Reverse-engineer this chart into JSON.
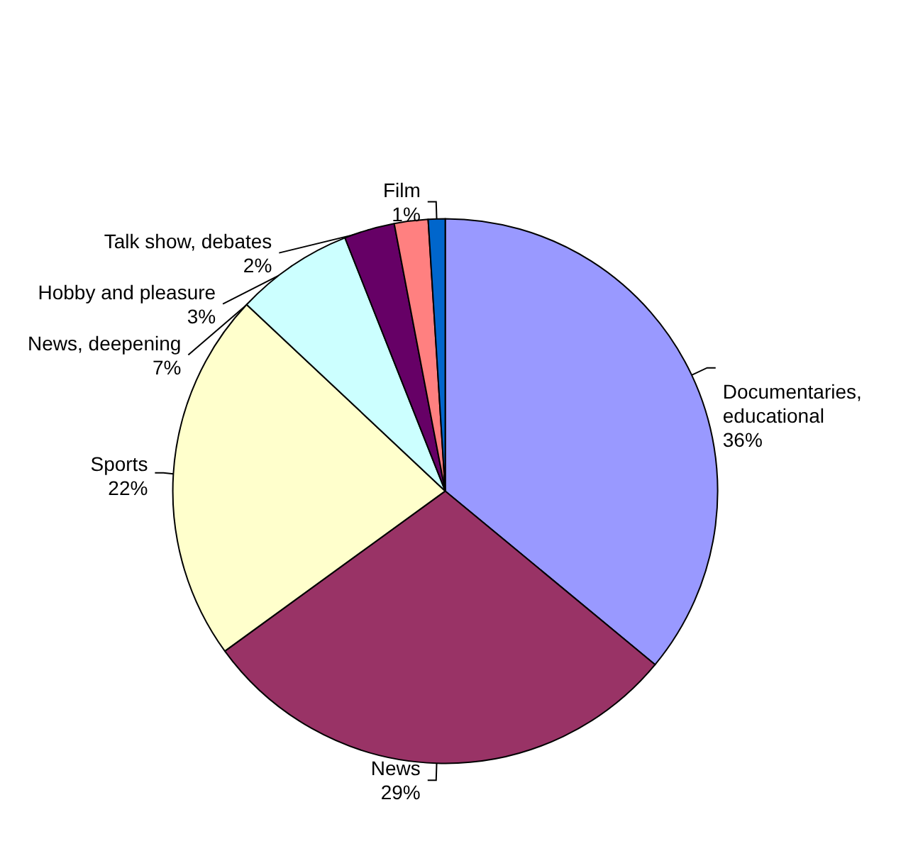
{
  "chart_data": {
    "type": "pie",
    "categories": [
      "Documentaries, educational",
      "News",
      "Sports",
      "News, deepening",
      "Hobby and pleasure",
      "Talk show, debates",
      "Film"
    ],
    "values": [
      36,
      29,
      22,
      7,
      3,
      2,
      1
    ],
    "value_labels": [
      "36%",
      "29%",
      "22%",
      "7%",
      "3%",
      "2%",
      "1%"
    ],
    "colors": [
      "#9999ff",
      "#993366",
      "#ffffcc",
      "#ccffff",
      "#660066",
      "#ff8080",
      "#0066cc"
    ],
    "legend": false
  }
}
